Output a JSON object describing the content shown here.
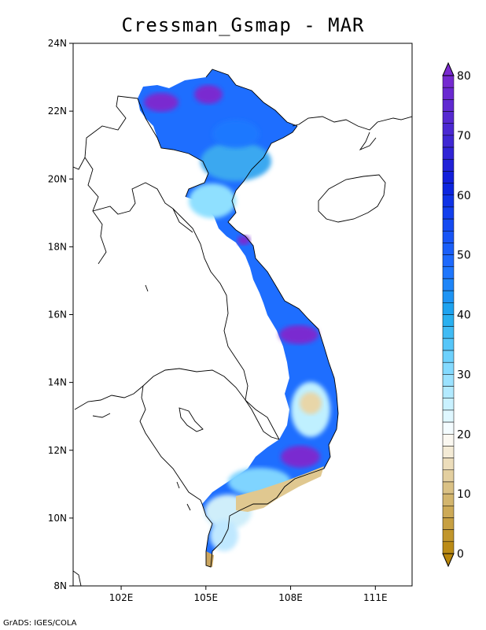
{
  "title": "Cressman_Gsmap - MAR",
  "footer": "GrADS: IGES/COLA",
  "map": {
    "lon_range": [
      100.3,
      112.3
    ],
    "lat_range": [
      8,
      24
    ],
    "lat_ticks": [
      {
        "value": 24,
        "label": "24N"
      },
      {
        "value": 22,
        "label": "22N"
      },
      {
        "value": 20,
        "label": "20N"
      },
      {
        "value": 18,
        "label": "18N"
      },
      {
        "value": 16,
        "label": "16N"
      },
      {
        "value": 14,
        "label": "14N"
      },
      {
        "value": 12,
        "label": "12N"
      },
      {
        "value": 10,
        "label": "10N"
      },
      {
        "value": 8,
        "label": "8N"
      }
    ],
    "lon_ticks": [
      {
        "value": 102,
        "label": "102E"
      },
      {
        "value": 105,
        "label": "105E"
      },
      {
        "value": 108,
        "label": "108E"
      },
      {
        "value": 111,
        "label": "111E"
      }
    ]
  },
  "colorbar": {
    "min": 0,
    "max": 80,
    "labels": [
      "80",
      "70",
      "60",
      "50",
      "40",
      "30",
      "20",
      "10",
      "0"
    ],
    "colors": {
      "brown": "#b8860b",
      "tan": "#e8d8b0",
      "white": "#ffffff",
      "light_cyan": "#9fe6ff",
      "cyan": "#1eaaee",
      "blue": "#1e5aff",
      "deep_blue": "#0a2ae0",
      "purple": "#7a2ad0"
    }
  }
}
